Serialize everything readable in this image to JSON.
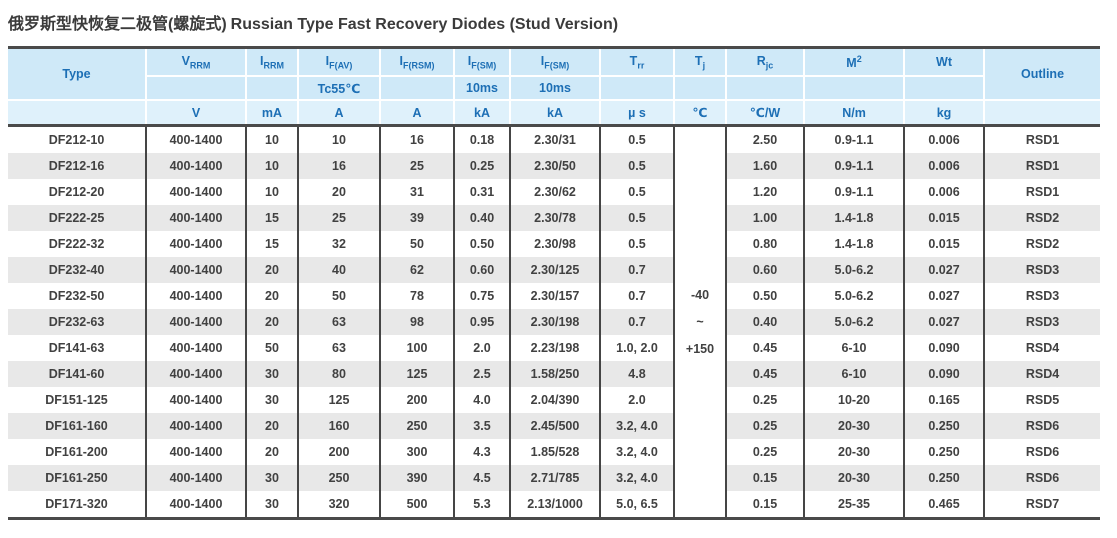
{
  "title": {
    "chinese": "俄罗斯型快恢复二极管(螺旋式)",
    "english": "Russian Type Fast Recovery Diodes (Stud Version)"
  },
  "colors": {
    "header_bg": "#cfe9f8",
    "header_units_bg": "#dff1fb",
    "header_text": "#1d6fb5",
    "row_stripe": "#e8e8e8",
    "data_text": "#414141",
    "border_dark": "#4a4a4a"
  },
  "table": {
    "columns": [
      {
        "base": "Type",
        "sub": "",
        "sup": "",
        "row2": "",
        "unit": ""
      },
      {
        "base": "V",
        "sub": "RRM",
        "sup": "",
        "row2": "",
        "unit": "V"
      },
      {
        "base": "I",
        "sub": "RRM",
        "sup": "",
        "row2": "",
        "unit": "mA"
      },
      {
        "base": "I",
        "sub": "F(AV)",
        "sup": "",
        "row2": "Tc55℃",
        "unit": "A"
      },
      {
        "base": "I",
        "sub": "F(RSM)",
        "sup": "",
        "row2": "",
        "unit": "A"
      },
      {
        "base": "I",
        "sub": "F(SM)",
        "sup": "",
        "row2": "10ms",
        "unit": "kA"
      },
      {
        "base": "I",
        "sub": "F(SM)",
        "sup": "",
        "row2": "10ms",
        "unit": "kA"
      },
      {
        "base": "T",
        "sub": "rr",
        "sup": "",
        "row2": "",
        "unit": "µ s"
      },
      {
        "base": "T",
        "sub": "j",
        "sup": "",
        "row2": "",
        "unit": "℃"
      },
      {
        "base": "R",
        "sub": "jc",
        "sup": "",
        "row2": "",
        "unit": "℃/W"
      },
      {
        "base": "M",
        "sub": "",
        "sup": "2",
        "row2": "",
        "unit": "N/m"
      },
      {
        "base": "Wt",
        "sub": "",
        "sup": "",
        "row2": "",
        "unit": "kg"
      },
      {
        "base": "Outline",
        "sub": "",
        "sup": "",
        "row2": "",
        "unit": ""
      }
    ],
    "tj_merged": {
      "lines": [
        "-40",
        "~",
        "+150"
      ]
    },
    "rows": [
      {
        "type": "DF212-10",
        "vrrm": "400-1400",
        "irrm": "10",
        "ifav": "10",
        "ifrsm": "16",
        "ifsm1": "0.18",
        "ifsm2": "2.30/31",
        "trr": "0.5",
        "rjc": "2.50",
        "m2": "0.9-1.1",
        "wt": "0.006",
        "outline": "RSD1"
      },
      {
        "type": "DF212-16",
        "vrrm": "400-1400",
        "irrm": "10",
        "ifav": "16",
        "ifrsm": "25",
        "ifsm1": "0.25",
        "ifsm2": "2.30/50",
        "trr": "0.5",
        "rjc": "1.60",
        "m2": "0.9-1.1",
        "wt": "0.006",
        "outline": "RSD1"
      },
      {
        "type": "DF212-20",
        "vrrm": "400-1400",
        "irrm": "10",
        "ifav": "20",
        "ifrsm": "31",
        "ifsm1": "0.31",
        "ifsm2": "2.30/62",
        "trr": "0.5",
        "rjc": "1.20",
        "m2": "0.9-1.1",
        "wt": "0.006",
        "outline": "RSD1"
      },
      {
        "type": "DF222-25",
        "vrrm": "400-1400",
        "irrm": "15",
        "ifav": "25",
        "ifrsm": "39",
        "ifsm1": "0.40",
        "ifsm2": "2.30/78",
        "trr": "0.5",
        "rjc": "1.00",
        "m2": "1.4-1.8",
        "wt": "0.015",
        "outline": "RSD2"
      },
      {
        "type": "DF222-32",
        "vrrm": "400-1400",
        "irrm": "15",
        "ifav": "32",
        "ifrsm": "50",
        "ifsm1": "0.50",
        "ifsm2": "2.30/98",
        "trr": "0.5",
        "rjc": "0.80",
        "m2": "1.4-1.8",
        "wt": "0.015",
        "outline": "RSD2"
      },
      {
        "type": "DF232-40",
        "vrrm": "400-1400",
        "irrm": "20",
        "ifav": "40",
        "ifrsm": "62",
        "ifsm1": "0.60",
        "ifsm2": "2.30/125",
        "trr": "0.7",
        "rjc": "0.60",
        "m2": "5.0-6.2",
        "wt": "0.027",
        "outline": "RSD3"
      },
      {
        "type": "DF232-50",
        "vrrm": "400-1400",
        "irrm": "20",
        "ifav": "50",
        "ifrsm": "78",
        "ifsm1": "0.75",
        "ifsm2": "2.30/157",
        "trr": "0.7",
        "rjc": "0.50",
        "m2": "5.0-6.2",
        "wt": "0.027",
        "outline": "RSD3"
      },
      {
        "type": "DF232-63",
        "vrrm": "400-1400",
        "irrm": "20",
        "ifav": "63",
        "ifrsm": "98",
        "ifsm1": "0.95",
        "ifsm2": "2.30/198",
        "trr": "0.7",
        "rjc": "0.40",
        "m2": "5.0-6.2",
        "wt": "0.027",
        "outline": "RSD3"
      },
      {
        "type": "DF141-63",
        "vrrm": "400-1400",
        "irrm": "50",
        "ifav": "63",
        "ifrsm": "100",
        "ifsm1": "2.0",
        "ifsm2": "2.23/198",
        "trr": "1.0, 2.0",
        "rjc": "0.45",
        "m2": "6-10",
        "wt": "0.090",
        "outline": "RSD4"
      },
      {
        "type": "DF141-60",
        "vrrm": "400-1400",
        "irrm": "30",
        "ifav": "80",
        "ifrsm": "125",
        "ifsm1": "2.5",
        "ifsm2": "1.58/250",
        "trr": "4.8",
        "rjc": "0.45",
        "m2": "6-10",
        "wt": "0.090",
        "outline": "RSD4"
      },
      {
        "type": "DF151-125",
        "vrrm": "400-1400",
        "irrm": "30",
        "ifav": "125",
        "ifrsm": "200",
        "ifsm1": "4.0",
        "ifsm2": "2.04/390",
        "trr": "2.0",
        "rjc": "0.25",
        "m2": "10-20",
        "wt": "0.165",
        "outline": "RSD5"
      },
      {
        "type": "DF161-160",
        "vrrm": "400-1400",
        "irrm": "20",
        "ifav": "160",
        "ifrsm": "250",
        "ifsm1": "3.5",
        "ifsm2": "2.45/500",
        "trr": "3.2, 4.0",
        "rjc": "0.25",
        "m2": "20-30",
        "wt": "0.250",
        "outline": "RSD6"
      },
      {
        "type": "DF161-200",
        "vrrm": "400-1400",
        "irrm": "20",
        "ifav": "200",
        "ifrsm": "300",
        "ifsm1": "4.3",
        "ifsm2": "1.85/528",
        "trr": "3.2, 4.0",
        "rjc": "0.25",
        "m2": "20-30",
        "wt": "0.250",
        "outline": "RSD6"
      },
      {
        "type": "DF161-250",
        "vrrm": "400-1400",
        "irrm": "30",
        "ifav": "250",
        "ifrsm": "390",
        "ifsm1": "4.5",
        "ifsm2": "2.71/785",
        "trr": "3.2, 4.0",
        "rjc": "0.15",
        "m2": "20-30",
        "wt": "0.250",
        "outline": "RSD6"
      },
      {
        "type": "DF171-320",
        "vrrm": "400-1400",
        "irrm": "30",
        "ifav": "320",
        "ifrsm": "500",
        "ifsm1": "5.3",
        "ifsm2": "2.13/1000",
        "trr": "5.0, 6.5",
        "rjc": "0.15",
        "m2": "25-35",
        "wt": "0.465",
        "outline": "RSD7"
      }
    ]
  }
}
